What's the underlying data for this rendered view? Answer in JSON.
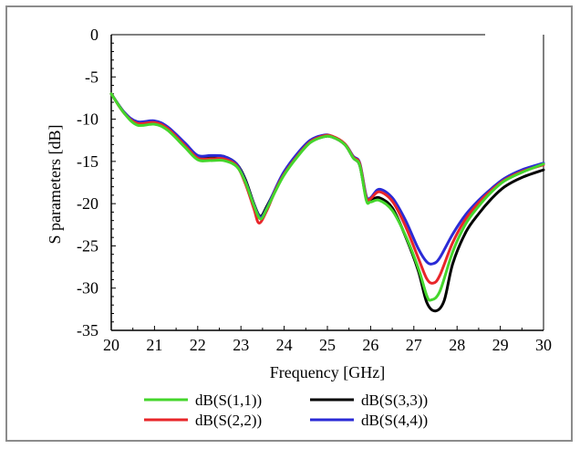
{
  "chart_data": {
    "type": "line",
    "xlabel": "Frequency [GHz]",
    "ylabel": "S parameters [dB]",
    "xlim": [
      20,
      30
    ],
    "ylim": [
      -35,
      0
    ],
    "xticks": [
      "20",
      "21",
      "22",
      "23",
      "24",
      "25",
      "26",
      "27",
      "28",
      "29",
      "30"
    ],
    "yticks": [
      "0",
      "-5",
      "-10",
      "-15",
      "-20",
      "-25",
      "-30",
      "-35"
    ],
    "grid": false,
    "legend_position": "bottom",
    "series": [
      {
        "name": "dB(S(1,1))",
        "color": "#44d62c",
        "points": [
          [
            20,
            -7.0
          ],
          [
            20.3,
            -9.3
          ],
          [
            20.6,
            -10.7
          ],
          [
            21.0,
            -10.6
          ],
          [
            21.3,
            -11.3
          ],
          [
            21.7,
            -13.3
          ],
          [
            22.0,
            -14.8
          ],
          [
            22.3,
            -14.9
          ],
          [
            22.6,
            -14.9
          ],
          [
            22.9,
            -15.6
          ],
          [
            23.1,
            -17.4
          ],
          [
            23.3,
            -20.2
          ],
          [
            23.45,
            -21.8
          ],
          [
            23.6,
            -20.6
          ],
          [
            23.8,
            -18.5
          ],
          [
            24.0,
            -16.6
          ],
          [
            24.3,
            -14.5
          ],
          [
            24.6,
            -12.8
          ],
          [
            24.9,
            -12.1
          ],
          [
            25.1,
            -12.1
          ],
          [
            25.4,
            -13.0
          ],
          [
            25.6,
            -14.6
          ],
          [
            25.75,
            -15.5
          ],
          [
            25.9,
            -19.6
          ],
          [
            26.0,
            -19.8
          ],
          [
            26.2,
            -19.6
          ],
          [
            26.5,
            -20.8
          ],
          [
            26.8,
            -23.7
          ],
          [
            27.1,
            -27.6
          ],
          [
            27.3,
            -30.9
          ],
          [
            27.4,
            -31.4
          ],
          [
            27.6,
            -30.4
          ],
          [
            27.9,
            -25.7
          ],
          [
            28.2,
            -22.4
          ],
          [
            28.5,
            -20.3
          ],
          [
            28.8,
            -18.6
          ],
          [
            29.1,
            -17.3
          ],
          [
            29.5,
            -16.3
          ],
          [
            30,
            -15.3
          ]
        ]
      },
      {
        "name": "dB(S(2,2))",
        "color": "#e8262a",
        "points": [
          [
            20,
            -7.0
          ],
          [
            20.3,
            -9.3
          ],
          [
            20.6,
            -10.5
          ],
          [
            21.0,
            -10.4
          ],
          [
            21.3,
            -11.1
          ],
          [
            21.7,
            -13.1
          ],
          [
            22.0,
            -14.6
          ],
          [
            22.3,
            -14.7
          ],
          [
            22.6,
            -14.7
          ],
          [
            22.9,
            -15.5
          ],
          [
            23.1,
            -17.6
          ],
          [
            23.3,
            -20.6
          ],
          [
            23.42,
            -22.3
          ],
          [
            23.6,
            -20.8
          ],
          [
            23.8,
            -18.4
          ],
          [
            24.0,
            -16.5
          ],
          [
            24.3,
            -14.4
          ],
          [
            24.6,
            -12.7
          ],
          [
            24.9,
            -12.0
          ],
          [
            25.1,
            -12.0
          ],
          [
            25.4,
            -12.9
          ],
          [
            25.6,
            -14.5
          ],
          [
            25.75,
            -15.3
          ],
          [
            25.9,
            -19.3
          ],
          [
            26.0,
            -19.4
          ],
          [
            26.2,
            -18.6
          ],
          [
            26.5,
            -19.7
          ],
          [
            26.8,
            -22.6
          ],
          [
            27.1,
            -26.4
          ],
          [
            27.3,
            -28.9
          ],
          [
            27.45,
            -29.4
          ],
          [
            27.6,
            -28.5
          ],
          [
            27.9,
            -24.6
          ],
          [
            28.2,
            -21.8
          ],
          [
            28.5,
            -19.9
          ],
          [
            28.8,
            -18.4
          ],
          [
            29.1,
            -17.2
          ],
          [
            29.5,
            -16.2
          ],
          [
            30,
            -15.4
          ]
        ]
      },
      {
        "name": "dB(S(3,3))",
        "color": "#000000",
        "points": [
          [
            20,
            -7.0
          ],
          [
            20.3,
            -9.2
          ],
          [
            20.6,
            -10.4
          ],
          [
            21.0,
            -10.3
          ],
          [
            21.3,
            -11.0
          ],
          [
            21.7,
            -12.9
          ],
          [
            22.0,
            -14.4
          ],
          [
            22.3,
            -14.4
          ],
          [
            22.6,
            -14.4
          ],
          [
            22.9,
            -15.3
          ],
          [
            23.1,
            -17.1
          ],
          [
            23.3,
            -20.0
          ],
          [
            23.45,
            -21.5
          ],
          [
            23.6,
            -20.3
          ],
          [
            23.8,
            -18.3
          ],
          [
            24.0,
            -16.4
          ],
          [
            24.3,
            -14.3
          ],
          [
            24.6,
            -12.7
          ],
          [
            24.9,
            -12.1
          ],
          [
            25.1,
            -12.1
          ],
          [
            25.4,
            -13.0
          ],
          [
            25.6,
            -14.6
          ],
          [
            25.75,
            -15.5
          ],
          [
            25.9,
            -19.4
          ],
          [
            26.0,
            -19.6
          ],
          [
            26.2,
            -19.3
          ],
          [
            26.5,
            -20.5
          ],
          [
            26.8,
            -23.8
          ],
          [
            27.1,
            -27.9
          ],
          [
            27.3,
            -31.7
          ],
          [
            27.5,
            -32.7
          ],
          [
            27.7,
            -31.5
          ],
          [
            27.9,
            -27.1
          ],
          [
            28.2,
            -23.4
          ],
          [
            28.5,
            -21.2
          ],
          [
            28.8,
            -19.4
          ],
          [
            29.1,
            -18.0
          ],
          [
            29.5,
            -16.9
          ],
          [
            30,
            -16.0
          ]
        ]
      },
      {
        "name": "dB(S(4,4))",
        "color": "#2b2bd6",
        "points": [
          [
            20,
            -7.0
          ],
          [
            20.3,
            -9.2
          ],
          [
            20.6,
            -10.3
          ],
          [
            21.0,
            -10.2
          ],
          [
            21.3,
            -10.9
          ],
          [
            21.7,
            -12.8
          ],
          [
            22.0,
            -14.3
          ],
          [
            22.3,
            -14.3
          ],
          [
            22.6,
            -14.4
          ],
          [
            22.9,
            -15.3
          ],
          [
            23.1,
            -17.3
          ],
          [
            23.3,
            -20.1
          ],
          [
            23.45,
            -21.6
          ],
          [
            23.6,
            -20.5
          ],
          [
            23.8,
            -18.2
          ],
          [
            24.0,
            -16.2
          ],
          [
            24.3,
            -14.1
          ],
          [
            24.6,
            -12.5
          ],
          [
            24.9,
            -11.9
          ],
          [
            25.1,
            -12.0
          ],
          [
            25.4,
            -12.9
          ],
          [
            25.6,
            -14.4
          ],
          [
            25.75,
            -15.2
          ],
          [
            25.9,
            -19.1
          ],
          [
            26.0,
            -19.3
          ],
          [
            26.2,
            -18.3
          ],
          [
            26.5,
            -19.3
          ],
          [
            26.8,
            -21.9
          ],
          [
            27.1,
            -25.3
          ],
          [
            27.3,
            -26.9
          ],
          [
            27.45,
            -27.1
          ],
          [
            27.6,
            -26.4
          ],
          [
            27.9,
            -23.6
          ],
          [
            28.2,
            -21.3
          ],
          [
            28.5,
            -19.6
          ],
          [
            28.8,
            -18.2
          ],
          [
            29.1,
            -17.0
          ],
          [
            29.5,
            -16.0
          ],
          [
            30,
            -15.2
          ]
        ]
      }
    ]
  }
}
